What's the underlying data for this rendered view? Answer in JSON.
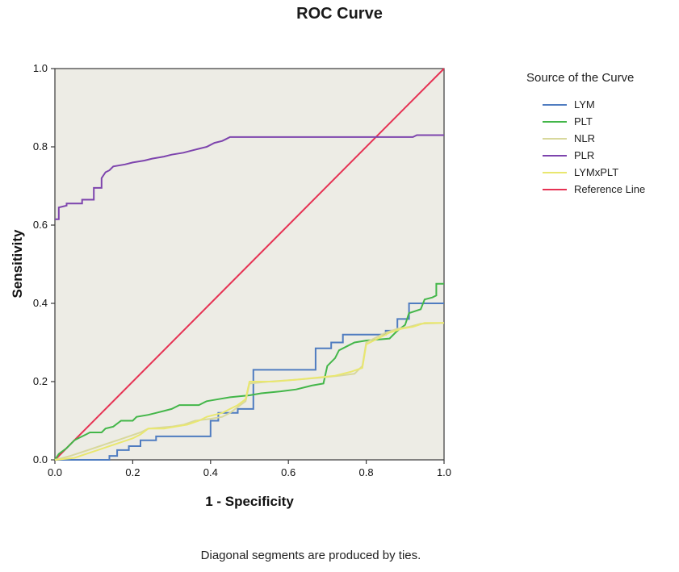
{
  "caption": "Diagonal segments are produced by ties.",
  "chart_data": {
    "type": "line",
    "title": "ROC Curve",
    "xlabel": "1 - Specificity",
    "ylabel": "Sensitivity",
    "legend_title": "Source of the Curve",
    "legend_position": "right",
    "grid": false,
    "xlim": [
      0,
      1
    ],
    "ylim": [
      0,
      1
    ],
    "xticks": [
      0.0,
      0.2,
      0.4,
      0.6,
      0.8,
      1.0
    ],
    "yticks": [
      0.0,
      0.2,
      0.4,
      0.6,
      0.8,
      1.0
    ],
    "xtick_labels": [
      "0.0",
      "0.2",
      "0.4",
      "0.6",
      "0.8",
      "1.0"
    ],
    "ytick_labels": [
      "0.0",
      "0.2",
      "0.4",
      "0.6",
      "0.8",
      "1.0"
    ],
    "plot_bg": "#edece5",
    "frame_color": "#3a3a3a",
    "series": [
      {
        "name": "LYM",
        "color": "#4f7cc0",
        "points": [
          [
            0,
            0
          ],
          [
            0.14,
            0
          ],
          [
            0.14,
            0.01
          ],
          [
            0.16,
            0.01
          ],
          [
            0.16,
            0.025
          ],
          [
            0.19,
            0.025
          ],
          [
            0.19,
            0.035
          ],
          [
            0.22,
            0.035
          ],
          [
            0.22,
            0.05
          ],
          [
            0.26,
            0.05
          ],
          [
            0.26,
            0.06
          ],
          [
            0.4,
            0.06
          ],
          [
            0.4,
            0.1
          ],
          [
            0.42,
            0.1
          ],
          [
            0.42,
            0.12
          ],
          [
            0.47,
            0.12
          ],
          [
            0.47,
            0.13
          ],
          [
            0.51,
            0.13
          ],
          [
            0.51,
            0.23
          ],
          [
            0.67,
            0.23
          ],
          [
            0.67,
            0.285
          ],
          [
            0.71,
            0.285
          ],
          [
            0.71,
            0.3
          ],
          [
            0.74,
            0.3
          ],
          [
            0.74,
            0.32
          ],
          [
            0.85,
            0.32
          ],
          [
            0.85,
            0.33
          ],
          [
            0.88,
            0.33
          ],
          [
            0.88,
            0.36
          ],
          [
            0.91,
            0.36
          ],
          [
            0.91,
            0.4
          ],
          [
            1.0,
            0.4
          ]
        ]
      },
      {
        "name": "PLT",
        "color": "#43b649",
        "points": [
          [
            0,
            0
          ],
          [
            0.01,
            0.015
          ],
          [
            0.03,
            0.03
          ],
          [
            0.05,
            0.05
          ],
          [
            0.06,
            0.055
          ],
          [
            0.08,
            0.065
          ],
          [
            0.09,
            0.07
          ],
          [
            0.12,
            0.07
          ],
          [
            0.13,
            0.08
          ],
          [
            0.15,
            0.085
          ],
          [
            0.17,
            0.1
          ],
          [
            0.2,
            0.1
          ],
          [
            0.21,
            0.11
          ],
          [
            0.24,
            0.115
          ],
          [
            0.26,
            0.12
          ],
          [
            0.28,
            0.125
          ],
          [
            0.3,
            0.13
          ],
          [
            0.32,
            0.14
          ],
          [
            0.37,
            0.14
          ],
          [
            0.39,
            0.15
          ],
          [
            0.42,
            0.155
          ],
          [
            0.45,
            0.16
          ],
          [
            0.5,
            0.165
          ],
          [
            0.53,
            0.17
          ],
          [
            0.58,
            0.175
          ],
          [
            0.62,
            0.18
          ],
          [
            0.66,
            0.19
          ],
          [
            0.69,
            0.195
          ],
          [
            0.7,
            0.24
          ],
          [
            0.72,
            0.26
          ],
          [
            0.73,
            0.28
          ],
          [
            0.75,
            0.29
          ],
          [
            0.77,
            0.3
          ],
          [
            0.8,
            0.305
          ],
          [
            0.86,
            0.31
          ],
          [
            0.88,
            0.33
          ],
          [
            0.9,
            0.345
          ],
          [
            0.91,
            0.375
          ],
          [
            0.94,
            0.385
          ],
          [
            0.95,
            0.41
          ],
          [
            0.97,
            0.415
          ],
          [
            0.98,
            0.42
          ],
          [
            0.98,
            0.45
          ],
          [
            1.0,
            0.45
          ]
        ]
      },
      {
        "name": "NLR",
        "color": "#d8d89c",
        "points": [
          [
            0,
            0
          ],
          [
            0.04,
            0.01
          ],
          [
            0.07,
            0.02
          ],
          [
            0.1,
            0.03
          ],
          [
            0.13,
            0.04
          ],
          [
            0.16,
            0.05
          ],
          [
            0.19,
            0.06
          ],
          [
            0.22,
            0.07
          ],
          [
            0.24,
            0.08
          ],
          [
            0.3,
            0.085
          ],
          [
            0.33,
            0.09
          ],
          [
            0.36,
            0.1
          ],
          [
            0.4,
            0.105
          ],
          [
            0.43,
            0.11
          ],
          [
            0.45,
            0.12
          ],
          [
            0.47,
            0.135
          ],
          [
            0.49,
            0.15
          ],
          [
            0.5,
            0.195
          ],
          [
            0.55,
            0.2
          ],
          [
            0.62,
            0.205
          ],
          [
            0.68,
            0.21
          ],
          [
            0.73,
            0.215
          ],
          [
            0.77,
            0.22
          ],
          [
            0.79,
            0.24
          ],
          [
            0.8,
            0.3
          ],
          [
            0.83,
            0.315
          ],
          [
            0.85,
            0.325
          ],
          [
            0.88,
            0.335
          ],
          [
            0.91,
            0.34
          ],
          [
            0.94,
            0.348
          ],
          [
            1.0,
            0.35
          ]
        ]
      },
      {
        "name": "PLR",
        "color": "#7d44ad",
        "points": [
          [
            0,
            0.615
          ],
          [
            0.01,
            0.615
          ],
          [
            0.01,
            0.645
          ],
          [
            0.03,
            0.65
          ],
          [
            0.03,
            0.655
          ],
          [
            0.07,
            0.655
          ],
          [
            0.07,
            0.665
          ],
          [
            0.1,
            0.665
          ],
          [
            0.1,
            0.695
          ],
          [
            0.12,
            0.695
          ],
          [
            0.12,
            0.72
          ],
          [
            0.13,
            0.735
          ],
          [
            0.14,
            0.74
          ],
          [
            0.15,
            0.75
          ],
          [
            0.18,
            0.755
          ],
          [
            0.2,
            0.76
          ],
          [
            0.23,
            0.765
          ],
          [
            0.25,
            0.77
          ],
          [
            0.28,
            0.775
          ],
          [
            0.3,
            0.78
          ],
          [
            0.33,
            0.785
          ],
          [
            0.35,
            0.79
          ],
          [
            0.37,
            0.795
          ],
          [
            0.39,
            0.8
          ],
          [
            0.41,
            0.81
          ],
          [
            0.43,
            0.815
          ],
          [
            0.44,
            0.82
          ],
          [
            0.45,
            0.825
          ],
          [
            0.92,
            0.825
          ],
          [
            0.93,
            0.83
          ],
          [
            1.0,
            0.83
          ]
        ]
      },
      {
        "name": "LYMxPLT",
        "color": "#e9e76f",
        "points": [
          [
            0,
            0
          ],
          [
            0.05,
            0.005
          ],
          [
            0.08,
            0.015
          ],
          [
            0.11,
            0.025
          ],
          [
            0.14,
            0.035
          ],
          [
            0.17,
            0.045
          ],
          [
            0.2,
            0.055
          ],
          [
            0.22,
            0.065
          ],
          [
            0.24,
            0.08
          ],
          [
            0.28,
            0.08
          ],
          [
            0.31,
            0.085
          ],
          [
            0.34,
            0.09
          ],
          [
            0.37,
            0.1
          ],
          [
            0.39,
            0.11
          ],
          [
            0.41,
            0.115
          ],
          [
            0.43,
            0.12
          ],
          [
            0.45,
            0.13
          ],
          [
            0.47,
            0.14
          ],
          [
            0.49,
            0.155
          ],
          [
            0.5,
            0.2
          ],
          [
            0.56,
            0.2
          ],
          [
            0.62,
            0.205
          ],
          [
            0.67,
            0.21
          ],
          [
            0.72,
            0.215
          ],
          [
            0.76,
            0.225
          ],
          [
            0.79,
            0.235
          ],
          [
            0.8,
            0.295
          ],
          [
            0.83,
            0.31
          ],
          [
            0.86,
            0.325
          ],
          [
            0.89,
            0.335
          ],
          [
            0.92,
            0.34
          ],
          [
            0.95,
            0.35
          ],
          [
            1.0,
            0.35
          ]
        ]
      },
      {
        "name": "Reference Line",
        "color": "#e63253",
        "reference": true,
        "points": [
          [
            0,
            0
          ],
          [
            1,
            1
          ]
        ]
      }
    ]
  }
}
